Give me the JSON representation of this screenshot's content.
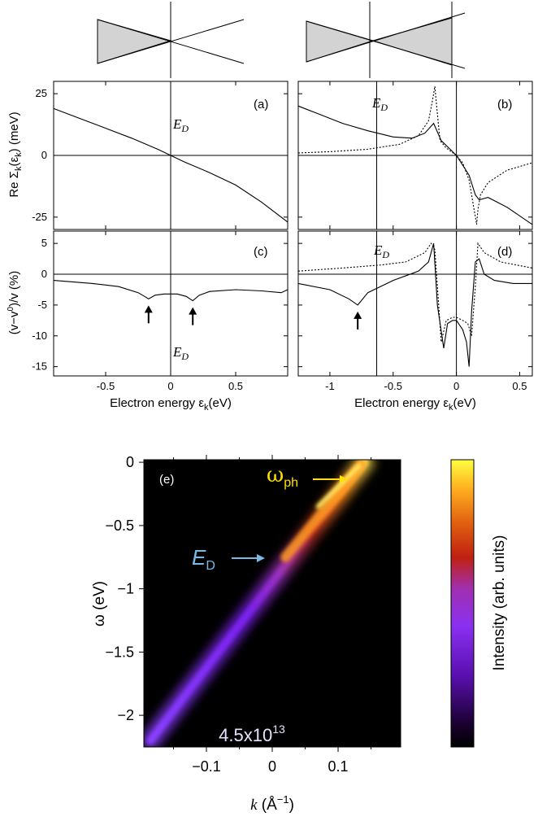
{
  "colors": {
    "axis": "#000000",
    "cone_fill": "#d3d3d3",
    "ed_label": "#7ab8e6",
    "wph_label": "#ffe000",
    "panel_bg": "#000000",
    "spectral_low": "#7a20f0",
    "spectral_high": "#ffd040"
  },
  "chart_data": [
    {
      "id": "a",
      "type": "line",
      "panel_label": "(a)",
      "ylabel": "Re Σ_k(ε_k) (meV)",
      "ylim": [
        -30,
        30
      ],
      "xlim": [
        -0.9,
        0.9
      ],
      "yticks": [
        25,
        0,
        -25
      ],
      "xticks": [
        -0.5,
        0,
        0.5
      ],
      "xticklabels": [
        "",
        "",
        ""
      ],
      "annotation": "E_D",
      "series": [
        {
          "style": "solid",
          "x": [
            -0.9,
            -0.7,
            -0.5,
            -0.3,
            -0.1,
            0,
            0.1,
            0.3,
            0.5,
            0.7,
            0.9
          ],
          "y": [
            19,
            15,
            11,
            7,
            2.5,
            0,
            -2.5,
            -7,
            -12,
            -19,
            -27
          ]
        }
      ]
    },
    {
      "id": "b",
      "type": "line",
      "panel_label": "(b)",
      "ylim": [
        -30,
        30
      ],
      "xlim": [
        -1.25,
        0.6
      ],
      "yticks": [
        25,
        0,
        -25
      ],
      "xticks": [
        -1,
        -0.5,
        0,
        0.5
      ],
      "xticklabels": [
        "",
        "",
        "",
        ""
      ],
      "annotation": "E_D",
      "series": [
        {
          "style": "solid",
          "x": [
            -1.25,
            -1.1,
            -0.9,
            -0.7,
            -0.5,
            -0.35,
            -0.25,
            -0.18,
            -0.12,
            -0.05,
            0,
            0.05,
            0.1,
            0.15,
            0.18,
            0.25,
            0.4,
            0.6
          ],
          "y": [
            20,
            17,
            13,
            10,
            7.5,
            7,
            9,
            13,
            6,
            2.5,
            0,
            -4,
            -8,
            -16,
            -18,
            -17,
            -21,
            -28
          ]
        },
        {
          "style": "dotted",
          "x": [
            -1.25,
            -1.0,
            -0.7,
            -0.45,
            -0.3,
            -0.22,
            -0.19,
            -0.17,
            -0.16,
            -0.13,
            -0.08,
            0,
            0.05,
            0.1,
            0.14,
            0.16,
            0.17,
            0.19,
            0.25,
            0.4,
            0.6
          ],
          "y": [
            1,
            1.5,
            2.5,
            4.5,
            8,
            14,
            22,
            28,
            22,
            6,
            3,
            0,
            -3,
            -10,
            -22,
            -28,
            -22,
            -16,
            -11,
            -6,
            -3
          ]
        }
      ]
    },
    {
      "id": "c",
      "type": "line",
      "panel_label": "(c)",
      "ylabel": "(v−v⁰)/v (%)",
      "xlabel": "Electron energy ε_k(eV)",
      "ylim": [
        -16.5,
        7
      ],
      "xlim": [
        -0.9,
        0.9
      ],
      "yticks": [
        5,
        0,
        -5,
        -10,
        -15
      ],
      "xticks": [
        -0.5,
        0,
        0.5
      ],
      "xticklabels": [
        "-0.5",
        "0",
        "0.5"
      ],
      "annotation": "E_D",
      "arrows_at": [
        -0.17,
        0.17
      ],
      "series": [
        {
          "style": "solid",
          "x": [
            -0.9,
            -0.6,
            -0.4,
            -0.25,
            -0.2,
            -0.17,
            -0.12,
            -0.05,
            0,
            0.05,
            0.12,
            0.17,
            0.22,
            0.3,
            0.5,
            0.7,
            0.85,
            0.9
          ],
          "y": [
            -1,
            -1.5,
            -2,
            -3,
            -3.6,
            -4,
            -3.4,
            -3.2,
            -3.2,
            -3.2,
            -3.6,
            -4.3,
            -3.4,
            -2.8,
            -2.5,
            -2.7,
            -3,
            -2.5
          ]
        }
      ]
    },
    {
      "id": "d",
      "type": "line",
      "panel_label": "(d)",
      "xlabel": "Electron energy ε_k(eV)",
      "ylim": [
        -16.5,
        7
      ],
      "xlim": [
        -1.25,
        0.6
      ],
      "yticks": [
        5,
        0,
        -5,
        -10,
        -15
      ],
      "xticks": [
        -1,
        -0.5,
        0,
        0.5
      ],
      "xticklabels": [
        "-1",
        "-0.5",
        "0",
        "0.5"
      ],
      "annotation": "E_D",
      "arrows_at": [
        -0.78
      ],
      "series": [
        {
          "style": "solid",
          "x": [
            -1.25,
            -1.0,
            -0.85,
            -0.78,
            -0.7,
            -0.5,
            -0.3,
            -0.22,
            -0.18,
            -0.15,
            -0.1,
            -0.07,
            -0.03,
            0,
            0.05,
            0.08,
            0.1,
            0.12,
            0.15,
            0.18,
            0.22,
            0.3,
            0.45,
            0.6
          ],
          "y": [
            -1.5,
            -2.5,
            -4,
            -5,
            -3,
            -1,
            0.5,
            2,
            5,
            -5,
            -12,
            -8,
            -7.5,
            -7.5,
            -9,
            -11,
            -15,
            -6,
            2,
            2.5,
            0,
            -1,
            -1.5,
            -1.5
          ]
        },
        {
          "style": "dotted",
          "x": [
            -1.25,
            -0.9,
            -0.6,
            -0.4,
            -0.25,
            -0.2,
            -0.17,
            -0.15,
            -0.12,
            -0.08,
            -0.03,
            0,
            0.05,
            0.09,
            0.12,
            0.15,
            0.17,
            0.22,
            0.35,
            0.6
          ],
          "y": [
            0.5,
            1,
            1.5,
            2,
            3.5,
            5,
            4,
            -2,
            -11,
            -7.5,
            -7,
            -7,
            -7.5,
            -8,
            -10,
            -2,
            5,
            3.5,
            2,
            1
          ]
        }
      ]
    },
    {
      "id": "e",
      "type": "heatmap",
      "panel_label": "(e)",
      "xlabel": "k (Å⁻¹)",
      "ylabel": "ω (eV)",
      "xlim": [
        -0.195,
        0.195
      ],
      "ylim": [
        -2.25,
        0.02
      ],
      "xticks": [
        -0.1,
        0,
        0.1
      ],
      "xticklabels": [
        "−0.1",
        "0",
        "0.1"
      ],
      "yticks": [
        0,
        -0.5,
        -1,
        -1.5,
        -2
      ],
      "yticklabels": [
        "0",
        "−0.5",
        "−1",
        "−1.5",
        "−2"
      ],
      "colorbar_label": "Intensity (arb. units)",
      "density_label": "4.5x10¹³",
      "ed_label": "E_D",
      "wph_label": "ω_ph",
      "band": {
        "k": [
          -0.185,
          0.14
        ],
        "omega": [
          -2.2,
          0.0
        ]
      },
      "ed_omega": -0.8,
      "wph_omega": -0.1
    }
  ],
  "texts": {
    "a_panel": "(a)",
    "b_panel": "(b)",
    "c_panel": "(c)",
    "d_panel": "(d)",
    "e_panel": "(e)",
    "ed": "E",
    "ed_sub": "D",
    "re_label": "Re Σ",
    "re_sub": "k",
    "re_label2": "(ε",
    "re_sub2": "k",
    "re_label3": ") (meV)",
    "v_label": "(v−v",
    "v_sup": "0",
    "v_label2": ")/v (%)",
    "xlabel_main": "Electron energy ε",
    "xlabel_sub": "k",
    "xlabel_end": "(eV)",
    "omega_label": "ω (eV)",
    "k_label": "k",
    "k_units": " (Å",
    "k_sup": "−1",
    "k_close": ")",
    "cbar_label": "Intensity (arb. units)",
    "density": "4.5x10",
    "density_sup": "13",
    "wph": "ω",
    "wph_sub": "ph",
    "ed2": "E",
    "ed2_sub": "D"
  }
}
